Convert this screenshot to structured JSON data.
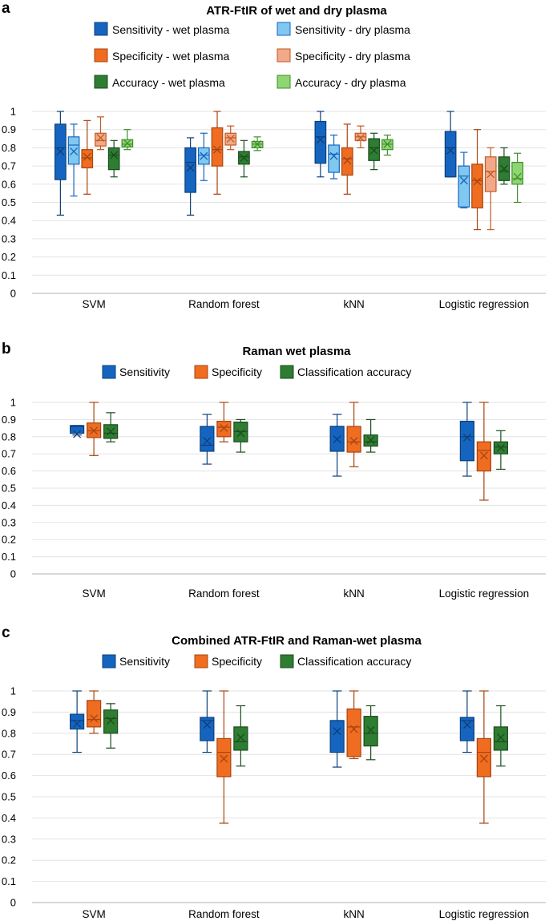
{
  "panels": [
    "a",
    "b",
    "c"
  ],
  "colors": {
    "wet_sens": "#1565c0",
    "wet_spec": "#ef6c21",
    "wet_acc": "#2e7d32",
    "dry_sens": "#81c8f0",
    "dry_spec": "#f2a98a",
    "dry_acc": "#8ed672"
  },
  "chart_data": [
    {
      "panel": "a",
      "type": "box",
      "title": "ATR-FtIR of wet and dry plasma",
      "categories": [
        "SVM",
        "Random forest",
        "kNN",
        "Logistic regression"
      ],
      "ylim": [
        0,
        1
      ],
      "yticks": [
        0,
        0.1,
        0.2,
        0.3,
        0.4,
        0.5,
        0.6,
        0.7,
        0.8,
        0.9,
        1
      ],
      "xlabel": "",
      "ylabel": "",
      "legend": {
        "columns": 2,
        "placement": "top"
      },
      "series": [
        {
          "name": "Sensitivity - wet plasma",
          "color_key": "wet_sens",
          "boxes": [
            {
              "min": 0.43,
              "q1": 0.625,
              "median": 0.8,
              "q3": 0.93,
              "max": 1.0,
              "mean": 0.78
            },
            {
              "min": 0.43,
              "q1": 0.555,
              "median": 0.72,
              "q3": 0.8,
              "max": 0.855,
              "mean": 0.69
            },
            {
              "min": 0.64,
              "q1": 0.715,
              "median": 0.86,
              "q3": 0.945,
              "max": 1.0,
              "mean": 0.845
            },
            {
              "min": 0.64,
              "q1": 0.64,
              "median": 0.8,
              "q3": 0.89,
              "max": 1.0,
              "mean": 0.785
            }
          ]
        },
        {
          "name": "Sensitivity - dry plasma",
          "color_key": "dry_sens",
          "boxes": [
            {
              "min": 0.535,
              "q1": 0.71,
              "median": 0.815,
              "q3": 0.86,
              "max": 0.93,
              "mean": 0.78
            },
            {
              "min": 0.62,
              "q1": 0.71,
              "median": 0.76,
              "q3": 0.8,
              "max": 0.88,
              "mean": 0.755
            },
            {
              "min": 0.63,
              "q1": 0.665,
              "median": 0.765,
              "q3": 0.815,
              "max": 0.87,
              "mean": 0.755
            },
            {
              "min": 0.47,
              "q1": 0.475,
              "median": 0.645,
              "q3": 0.7,
              "max": 0.775,
              "mean": 0.62
            }
          ]
        },
        {
          "name": "Specificity - wet plasma",
          "color_key": "wet_spec",
          "boxes": [
            {
              "min": 0.545,
              "q1": 0.69,
              "median": 0.745,
              "q3": 0.79,
              "max": 0.95,
              "mean": 0.75
            },
            {
              "min": 0.545,
              "q1": 0.7,
              "median": 0.79,
              "q3": 0.91,
              "max": 1.0,
              "mean": 0.79
            },
            {
              "min": 0.545,
              "q1": 0.65,
              "median": 0.74,
              "q3": 0.8,
              "max": 0.93,
              "mean": 0.73
            },
            {
              "min": 0.35,
              "q1": 0.47,
              "median": 0.62,
              "q3": 0.71,
              "max": 0.9,
              "mean": 0.615
            }
          ]
        },
        {
          "name": "Specificity - dry plasma",
          "color_key": "dry_spec",
          "boxes": [
            {
              "min": 0.79,
              "q1": 0.81,
              "median": 0.84,
              "q3": 0.88,
              "max": 0.97,
              "mean": 0.855
            },
            {
              "min": 0.79,
              "q1": 0.815,
              "median": 0.855,
              "q3": 0.88,
              "max": 0.92,
              "mean": 0.85
            },
            {
              "min": 0.8,
              "q1": 0.84,
              "median": 0.86,
              "q3": 0.88,
              "max": 0.92,
              "mean": 0.855
            },
            {
              "min": 0.35,
              "q1": 0.56,
              "median": 0.67,
              "q3": 0.75,
              "max": 0.8,
              "mean": 0.655
            }
          ]
        },
        {
          "name": "Accuracy - wet plasma",
          "color_key": "wet_acc",
          "boxes": [
            {
              "min": 0.64,
              "q1": 0.68,
              "median": 0.76,
              "q3": 0.8,
              "max": 0.84,
              "mean": 0.76
            },
            {
              "min": 0.64,
              "q1": 0.71,
              "median": 0.75,
              "q3": 0.78,
              "max": 0.84,
              "mean": 0.745
            },
            {
              "min": 0.68,
              "q1": 0.73,
              "median": 0.8,
              "q3": 0.85,
              "max": 0.88,
              "mean": 0.785
            },
            {
              "min": 0.6,
              "q1": 0.62,
              "median": 0.67,
              "q3": 0.75,
              "max": 0.8,
              "mean": 0.685
            }
          ]
        },
        {
          "name": "Accuracy - dry plasma",
          "color_key": "dry_acc",
          "boxes": [
            {
              "min": 0.79,
              "q1": 0.805,
              "median": 0.82,
              "q3": 0.845,
              "max": 0.9,
              "mean": 0.825
            },
            {
              "min": 0.785,
              "q1": 0.8,
              "median": 0.82,
              "q3": 0.835,
              "max": 0.86,
              "mean": 0.82
            },
            {
              "min": 0.76,
              "q1": 0.79,
              "median": 0.82,
              "q3": 0.845,
              "max": 0.87,
              "mean": 0.82
            },
            {
              "min": 0.5,
              "q1": 0.6,
              "median": 0.63,
              "q3": 0.72,
              "max": 0.77,
              "mean": 0.64
            }
          ]
        }
      ]
    },
    {
      "panel": "b",
      "type": "box",
      "title": "Raman wet plasma",
      "categories": [
        "SVM",
        "Random forest",
        "kNN",
        "Logistic regression"
      ],
      "ylim": [
        0,
        1
      ],
      "yticks": [
        0,
        0.1,
        0.2,
        0.3,
        0.4,
        0.5,
        0.6,
        0.7,
        0.8,
        0.9,
        1
      ],
      "xlabel": "",
      "ylabel": "",
      "legend": {
        "columns": 3,
        "placement": "top"
      },
      "series": [
        {
          "name": "Sensitivity",
          "color_key": "wet_sens",
          "boxes": [
            {
              "min": 0.81,
              "q1": 0.82,
              "median": 0.86,
              "q3": 0.865,
              "max": 0.865,
              "mean": 0.815
            },
            {
              "min": 0.64,
              "q1": 0.715,
              "median": 0.75,
              "q3": 0.86,
              "max": 0.93,
              "mean": 0.775
            },
            {
              "min": 0.57,
              "q1": 0.715,
              "median": 0.86,
              "q3": 0.86,
              "max": 0.93,
              "mean": 0.785
            },
            {
              "min": 0.57,
              "q1": 0.66,
              "median": 0.8,
              "q3": 0.89,
              "max": 1.0,
              "mean": 0.795
            }
          ]
        },
        {
          "name": "Specificity",
          "color_key": "wet_spec",
          "boxes": [
            {
              "min": 0.69,
              "q1": 0.795,
              "median": 0.835,
              "q3": 0.88,
              "max": 1.0,
              "mean": 0.835
            },
            {
              "min": 0.77,
              "q1": 0.8,
              "median": 0.855,
              "q3": 0.89,
              "max": 1.0,
              "mean": 0.85
            },
            {
              "min": 0.625,
              "q1": 0.71,
              "median": 0.77,
              "q3": 0.86,
              "max": 1.0,
              "mean": 0.775
            },
            {
              "min": 0.43,
              "q1": 0.6,
              "median": 0.72,
              "q3": 0.77,
              "max": 1.0,
              "mean": 0.69
            }
          ]
        },
        {
          "name": "Classification accuracy",
          "color_key": "wet_acc",
          "boxes": [
            {
              "min": 0.77,
              "q1": 0.79,
              "median": 0.82,
              "q3": 0.87,
              "max": 0.94,
              "mean": 0.83
            },
            {
              "min": 0.71,
              "q1": 0.77,
              "median": 0.83,
              "q3": 0.885,
              "max": 0.9,
              "mean": 0.82
            },
            {
              "min": 0.71,
              "q1": 0.745,
              "median": 0.77,
              "q3": 0.81,
              "max": 0.9,
              "mean": 0.78
            },
            {
              "min": 0.61,
              "q1": 0.7,
              "median": 0.74,
              "q3": 0.77,
              "max": 0.835,
              "mean": 0.735
            }
          ]
        }
      ]
    },
    {
      "panel": "c",
      "type": "box",
      "title": "Combined ATR-FtIR and Raman-wet plasma",
      "categories": [
        "SVM",
        "Random forest",
        "kNN",
        "Logistic regression"
      ],
      "ylim": [
        0,
        1
      ],
      "yticks": [
        0,
        0.1,
        0.2,
        0.3,
        0.4,
        0.5,
        0.6,
        0.7,
        0.8,
        0.9,
        1
      ],
      "xlabel": "",
      "ylabel": "",
      "legend": {
        "columns": 3,
        "placement": "top"
      },
      "series": [
        {
          "name": "Sensitivity",
          "color_key": "wet_sens",
          "boxes": [
            {
              "min": 0.71,
              "q1": 0.82,
              "median": 0.86,
              "q3": 0.89,
              "max": 1.0,
              "mean": 0.845
            },
            {
              "min": 0.71,
              "q1": 0.765,
              "median": 0.86,
              "q3": 0.875,
              "max": 1.0,
              "mean": 0.84
            },
            {
              "min": 0.64,
              "q1": 0.71,
              "median": 0.86,
              "q3": 0.86,
              "max": 1.0,
              "mean": 0.81
            },
            {
              "min": 0.71,
              "q1": 0.765,
              "median": 0.86,
              "q3": 0.875,
              "max": 1.0,
              "mean": 0.84
            }
          ]
        },
        {
          "name": "Specificity",
          "color_key": "wet_spec",
          "boxes": [
            {
              "min": 0.8,
              "q1": 0.83,
              "median": 0.865,
              "q3": 0.955,
              "max": 1.0,
              "mean": 0.87
            },
            {
              "min": 0.375,
              "q1": 0.595,
              "median": 0.71,
              "q3": 0.775,
              "max": 1.0,
              "mean": 0.68
            },
            {
              "min": 0.68,
              "q1": 0.69,
              "median": 0.83,
              "q3": 0.915,
              "max": 1.0,
              "mean": 0.82
            },
            {
              "min": 0.375,
              "q1": 0.595,
              "median": 0.71,
              "q3": 0.775,
              "max": 1.0,
              "mean": 0.68
            }
          ]
        },
        {
          "name": "Classification accuracy",
          "color_key": "wet_acc",
          "boxes": [
            {
              "min": 0.73,
              "q1": 0.8,
              "median": 0.87,
              "q3": 0.91,
              "max": 0.94,
              "mean": 0.86
            },
            {
              "min": 0.645,
              "q1": 0.72,
              "median": 0.76,
              "q3": 0.83,
              "max": 0.93,
              "mean": 0.78
            },
            {
              "min": 0.675,
              "q1": 0.74,
              "median": 0.8,
              "q3": 0.88,
              "max": 0.93,
              "mean": 0.815
            },
            {
              "min": 0.645,
              "q1": 0.72,
              "median": 0.76,
              "q3": 0.83,
              "max": 0.93,
              "mean": 0.78
            }
          ]
        }
      ]
    }
  ]
}
